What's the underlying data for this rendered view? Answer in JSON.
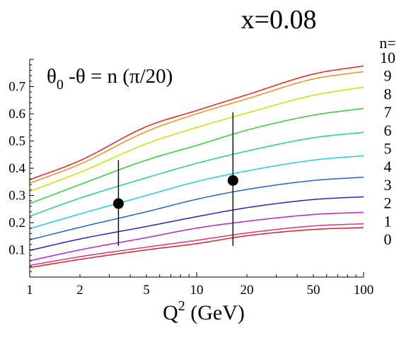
{
  "chart_data": {
    "type": "line",
    "title": "x=0.08",
    "annotation": {
      "theta0": "θ",
      "theta0_sub": "0",
      "rest": " -θ = n (π/20)"
    },
    "xlabel": {
      "base": "Q",
      "sup": "2",
      "unit": " (GeV)"
    },
    "x_scale": "log",
    "xlim": [
      1,
      100
    ],
    "ylim": [
      0.0,
      0.8
    ],
    "x_ticks": [
      1,
      2,
      5,
      10,
      20,
      50,
      100
    ],
    "y_ticks": [
      0.1,
      0.2,
      0.3,
      0.4,
      0.5,
      0.6,
      0.7
    ],
    "y_tick_labels": [
      "0.1",
      "0.2",
      "0.3",
      "0.4",
      "0.5",
      "0.6",
      "0.7"
    ],
    "legend_header": "n=",
    "grid": false,
    "x": [
      1,
      2,
      5,
      10,
      20,
      50,
      100
    ],
    "series": [
      {
        "name": "0",
        "color": "#e0201e",
        "values": [
          0.035,
          0.065,
          0.1,
          0.123,
          0.152,
          0.175,
          0.182
        ]
      },
      {
        "name": "1",
        "color": "#e0308a",
        "values": [
          0.043,
          0.075,
          0.11,
          0.135,
          0.162,
          0.188,
          0.196
        ]
      },
      {
        "name": "2",
        "color": "#c020c8",
        "values": [
          0.06,
          0.1,
          0.145,
          0.18,
          0.205,
          0.23,
          0.238
        ]
      },
      {
        "name": "3",
        "color": "#3020c0",
        "values": [
          0.098,
          0.14,
          0.186,
          0.222,
          0.255,
          0.285,
          0.295
        ]
      },
      {
        "name": "4",
        "color": "#1e64d2",
        "values": [
          0.137,
          0.183,
          0.24,
          0.286,
          0.322,
          0.355,
          0.367
        ]
      },
      {
        "name": "5",
        "color": "#20d2d2",
        "values": [
          0.178,
          0.232,
          0.3,
          0.351,
          0.39,
          0.43,
          0.446
        ]
      },
      {
        "name": "6",
        "color": "#20d28c",
        "values": [
          0.224,
          0.29,
          0.365,
          0.418,
          0.463,
          0.512,
          0.532
        ]
      },
      {
        "name": "7",
        "color": "#30d030",
        "values": [
          0.27,
          0.34,
          0.43,
          0.484,
          0.54,
          0.595,
          0.62
        ]
      },
      {
        "name": "8",
        "color": "#d2e000",
        "values": [
          0.315,
          0.385,
          0.49,
          0.55,
          0.603,
          0.668,
          0.698
        ]
      },
      {
        "name": "9",
        "color": "#f09020",
        "values": [
          0.345,
          0.415,
          0.535,
          0.6,
          0.655,
          0.728,
          0.755
        ]
      },
      {
        "name": "10",
        "color": "#f02020",
        "values": [
          0.358,
          0.428,
          0.553,
          0.612,
          0.67,
          0.746,
          0.776
        ]
      }
    ],
    "data_points": [
      {
        "x": 3.4,
        "y": 0.27,
        "y_low": 0.115,
        "y_high": 0.43
      },
      {
        "x": 16.5,
        "y": 0.355,
        "y_low": 0.115,
        "y_high": 0.605
      }
    ]
  }
}
